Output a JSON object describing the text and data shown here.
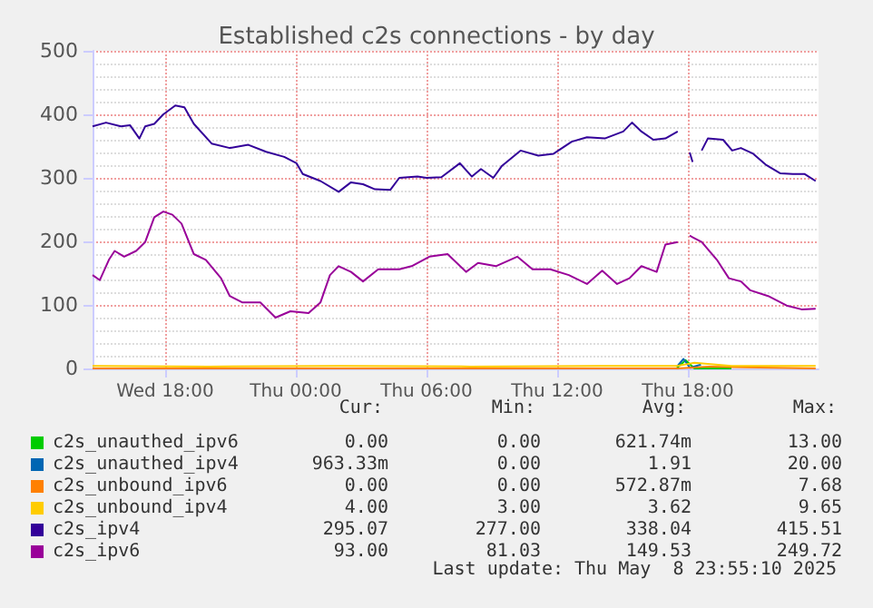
{
  "chart_data": {
    "type": "line",
    "title": "Established c2s connections - by day",
    "xlim": [
      "2025-05-07T14:40",
      "2025-05-09T00:00"
    ],
    "xticks": [
      {
        "value": "2025-05-07T18:00",
        "label": "Wed 18:00"
      },
      {
        "value": "2025-05-08T00:00",
        "label": "Thu 00:00"
      },
      {
        "value": "2025-05-08T06:00",
        "label": "Thu 06:00"
      },
      {
        "value": "2025-05-08T12:00",
        "label": "Thu 12:00"
      },
      {
        "value": "2025-05-08T18:00",
        "label": "Thu 18:00"
      }
    ],
    "ylim": [
      0,
      500
    ],
    "yticks": [
      0,
      100,
      200,
      300,
      400,
      500
    ],
    "grid": true,
    "legend": "bottom",
    "marker": "none",
    "line_style": "solid",
    "series": [
      {
        "name": "c2s_unauthed_ipv6",
        "color": "#00cc00",
        "x": [
          "2025-05-08T17:30",
          "2025-05-08T17:54",
          "2025-05-08T18:18",
          "2025-05-08T20:00"
        ],
        "values": [
          1,
          13,
          0,
          0
        ]
      },
      {
        "name": "c2s_unauthed_ipv4",
        "color": "#0066b3",
        "x": [
          "2025-05-08T17:30",
          "2025-05-08T17:48",
          "2025-05-08T18:06",
          "2025-05-08T18:36"
        ],
        "values": [
          3,
          15,
          1,
          6
        ]
      },
      {
        "name": "c2s_unbound_ipv6",
        "color": "#ff8000",
        "x": [
          "2025-05-07T14:40",
          "2025-05-07T20:00",
          "2025-05-08T02:00",
          "2025-05-08T08:00",
          "2025-05-08T14:00",
          "2025-05-08T17:30",
          "2025-05-08T18:36",
          "2025-05-08T19:00",
          "2025-05-08T20:00",
          "2025-05-08T23:52"
        ],
        "values": [
          0,
          0,
          0,
          0,
          0,
          0,
          2,
          3,
          2,
          0
        ]
      },
      {
        "name": "c2s_unbound_ipv4",
        "color": "#ffcc00",
        "x": [
          "2025-05-07T14:40",
          "2025-05-07T20:00",
          "2025-05-08T02:00",
          "2025-05-08T08:00",
          "2025-05-08T14:00",
          "2025-05-08T17:30",
          "2025-05-08T18:18",
          "2025-05-08T20:00",
          "2025-05-08T23:52"
        ],
        "values": [
          4,
          3,
          4,
          3,
          4,
          4,
          9,
          4,
          4
        ]
      },
      {
        "name": "c2s_ipv4",
        "color": "#330099",
        "x": [
          "2025-05-07T14:40",
          "2025-05-07T15:17",
          "2025-05-07T15:58",
          "2025-05-07T16:23",
          "2025-05-07T16:49",
          "2025-05-07T17:05",
          "2025-05-07T17:30",
          "2025-05-07T17:55",
          "2025-05-07T18:28",
          "2025-05-07T18:53",
          "2025-05-07T19:19",
          "2025-05-07T20:08",
          "2025-05-07T20:58",
          "2025-05-07T21:49",
          "2025-05-07T22:38",
          "2025-05-07T23:28",
          "2025-05-08T00:02",
          "2025-05-08T00:19",
          "2025-05-08T01:08",
          "2025-05-08T01:58",
          "2025-05-08T02:32",
          "2025-05-08T03:05",
          "2025-05-08T03:38",
          "2025-05-08T04:20",
          "2025-05-08T04:45",
          "2025-05-08T05:35",
          "2025-05-08T06:00",
          "2025-05-08T06:41",
          "2025-05-08T07:32",
          "2025-05-08T08:05",
          "2025-05-08T08:30",
          "2025-05-08T09:04",
          "2025-05-08T09:28",
          "2025-05-08T10:19",
          "2025-05-08T11:08",
          "2025-05-08T11:50",
          "2025-05-08T12:40",
          "2025-05-08T13:22",
          "2025-05-08T14:11",
          "2025-05-08T15:02",
          "2025-05-08T15:26",
          "2025-05-08T15:52",
          "2025-05-08T16:25",
          "2025-05-08T16:58",
          "2025-05-08T17:32",
          "2025-05-08T17:48",
          "2025-05-08T18:05",
          "2025-05-08T18:13",
          "2025-05-08T18:24",
          "2025-05-08T18:38",
          "2025-05-08T18:55",
          "2025-05-08T19:37",
          "2025-05-08T20:02",
          "2025-05-08T20:26",
          "2025-05-08T21:00",
          "2025-05-08T21:34",
          "2025-05-08T22:15",
          "2025-05-08T22:49",
          "2025-05-08T23:22",
          "2025-05-08T23:52"
        ],
        "values": [
          381,
          387,
          381,
          383,
          362,
          381,
          385,
          400,
          414,
          411,
          385,
          354,
          347,
          352,
          341,
          333,
          323,
          306,
          295,
          278,
          293,
          290,
          282,
          281,
          300,
          302,
          300,
          301,
          323,
          302,
          314,
          300,
          319,
          343,
          335,
          338,
          357,
          364,
          362,
          373,
          387,
          373,
          360,
          362,
          373,
          null,
          340,
          325,
          null,
          343,
          362,
          360,
          343,
          347,
          338,
          321,
          307,
          306,
          306,
          295
        ]
      },
      {
        "name": "c2s_ipv6",
        "color": "#990099",
        "x": [
          "2025-05-07T14:40",
          "2025-05-07T15:00",
          "2025-05-07T15:25",
          "2025-05-07T15:41",
          "2025-05-07T16:07",
          "2025-05-07T16:40",
          "2025-05-07T17:05",
          "2025-05-07T17:30",
          "2025-05-07T17:55",
          "2025-05-07T18:20",
          "2025-05-07T18:45",
          "2025-05-07T19:19",
          "2025-05-07T19:52",
          "2025-05-07T20:34",
          "2025-05-07T20:58",
          "2025-05-07T21:32",
          "2025-05-07T22:22",
          "2025-05-07T23:04",
          "2025-05-07T23:45",
          "2025-05-08T00:35",
          "2025-05-08T01:08",
          "2025-05-08T01:34",
          "2025-05-08T01:58",
          "2025-05-08T02:32",
          "2025-05-08T03:05",
          "2025-05-08T03:47",
          "2025-05-08T04:45",
          "2025-05-08T05:19",
          "2025-05-08T06:08",
          "2025-05-08T06:58",
          "2025-05-08T07:49",
          "2025-05-08T08:22",
          "2025-05-08T09:11",
          "2025-05-08T10:10",
          "2025-05-08T10:52",
          "2025-05-08T11:41",
          "2025-05-08T12:32",
          "2025-05-08T13:22",
          "2025-05-08T14:04",
          "2025-05-08T14:45",
          "2025-05-08T15:19",
          "2025-05-08T15:52",
          "2025-05-08T16:34",
          "2025-05-08T16:58",
          "2025-05-08T17:32",
          "2025-05-08T17:48",
          "2025-05-08T18:05",
          "2025-05-08T18:38",
          "2025-05-08T19:20",
          "2025-05-08T19:53",
          "2025-05-08T20:26",
          "2025-05-08T20:52",
          "2025-05-08T21:41",
          "2025-05-08T22:32",
          "2025-05-08T23:13",
          "2025-05-08T23:52"
        ],
        "values": [
          147,
          139,
          171,
          185,
          176,
          185,
          199,
          238,
          247,
          242,
          228,
          180,
          171,
          142,
          114,
          104,
          104,
          80,
          90,
          87,
          104,
          147,
          161,
          152,
          137,
          156,
          156,
          161,
          176,
          180,
          152,
          166,
          161,
          176,
          156,
          156,
          147,
          133,
          154,
          133,
          142,
          161,
          152,
          195,
          199,
          null,
          209,
          199,
          171,
          142,
          137,
          123,
          114,
          99,
          93,
          94
        ]
      }
    ],
    "annotations": [
      "Cur:",
      "Min:",
      "Avg:",
      "Max:",
      "0.00",
      "0.00",
      "621.74m",
      "13.00",
      "963.33m",
      "0.00",
      "1.91",
      "20.00",
      "0.00",
      "0.00",
      "572.87m",
      "7.68",
      "4.00",
      "3.00",
      "3.62",
      "9.65",
      "295.07",
      "277.00",
      "338.04",
      "415.51",
      "93.00",
      "81.03",
      "149.53",
      "249.72",
      "Last update: Thu May  8 23:55:10 2025"
    ]
  }
}
